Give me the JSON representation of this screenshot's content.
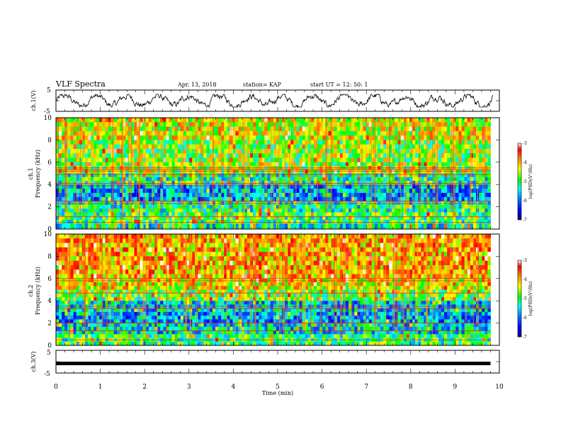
{
  "header": {
    "title": "VLF Spectra",
    "date": "Apr. 13, 2018",
    "station": "station= KAP",
    "start": "start  UT  =   12: 50: 1"
  },
  "colorbar": {
    "label": "log(PSD)(V²/Hz)",
    "ticks": [
      "-3",
      "-4",
      "-5",
      "-6",
      "-7"
    ],
    "colors": [
      "#000080",
      "#0000ff",
      "#0080ff",
      "#00ffff",
      "#00ff00",
      "#ffff00",
      "#ff8000",
      "#ff0000",
      "#ffffff"
    ]
  },
  "chart_data": [
    {
      "type": "line",
      "name": "waveform-ch1",
      "ylabel": "ch.1(V)",
      "ylim": [
        -5,
        5
      ],
      "yticks": [
        "5",
        "-5"
      ],
      "xlim": [
        0,
        10
      ],
      "series": [
        {
          "description": "noisy waveform centered near 0 V",
          "y_range": [
            -3,
            3
          ]
        }
      ]
    },
    {
      "type": "heatmap",
      "name": "spectrogram-ch1",
      "channel": "ch.1",
      "ylabel": "Frequency (kHz)",
      "ylim": [
        0,
        10
      ],
      "yticks": [
        "10",
        "8",
        "6",
        "4",
        "2",
        "0"
      ],
      "xlim": [
        0,
        9.8
      ],
      "z_range": [
        -7,
        -3
      ],
      "bands": [
        {
          "f": [
            8.0,
            10.0
          ],
          "z": -4.4
        },
        {
          "f": [
            6.0,
            8.0
          ],
          "z": -4.7
        },
        {
          "f": [
            5.0,
            6.0
          ],
          "z": -4.6
        },
        {
          "f": [
            4.0,
            5.0
          ],
          "z": -5.2
        },
        {
          "f": [
            2.5,
            4.0
          ],
          "z": -5.8
        },
        {
          "f": [
            1.5,
            2.5
          ],
          "z": -5.2
        },
        {
          "f": [
            0.5,
            1.5
          ],
          "z": -5.0
        },
        {
          "f": [
            0.0,
            0.5
          ],
          "z": -5.3
        }
      ],
      "lines_khz": [
        5.5,
        5.35,
        5.2,
        4.9,
        4.1,
        3.9,
        2.5,
        2.3,
        1.1,
        0.6
      ]
    },
    {
      "type": "heatmap",
      "name": "spectrogram-ch2",
      "channel": "ch.2",
      "ylabel": "Frequency (kHz)",
      "ylim": [
        0,
        10
      ],
      "yticks": [
        "10",
        "8",
        "6",
        "4",
        "2",
        "0"
      ],
      "xlim": [
        0,
        9.8
      ],
      "z_range": [
        -7,
        -3
      ],
      "bands": [
        {
          "f": [
            6.0,
            10.0
          ],
          "z": -4.0
        },
        {
          "f": [
            5.0,
            6.0
          ],
          "z": -4.3
        },
        {
          "f": [
            4.0,
            5.0
          ],
          "z": -4.8
        },
        {
          "f": [
            3.0,
            4.0
          ],
          "z": -5.6
        },
        {
          "f": [
            2.0,
            3.0
          ],
          "z": -5.8
        },
        {
          "f": [
            1.0,
            2.0
          ],
          "z": -5.5
        },
        {
          "f": [
            0.0,
            1.0
          ],
          "z": -5.0
        }
      ],
      "lines_khz": [
        6.0,
        5.8,
        4.7,
        3.5,
        3.3,
        2.0,
        1.3,
        0.5
      ]
    },
    {
      "type": "line",
      "name": "waveform-ch3",
      "ylabel": "ch.3(V)",
      "ylim": [
        -5,
        5
      ],
      "yticks": [
        "5",
        "-5"
      ],
      "xlim": [
        0,
        10
      ],
      "series": [
        {
          "description": "flat constant level",
          "y": -0.8
        }
      ]
    }
  ],
  "x_axis": {
    "label": "Time (min)",
    "ticks": [
      "0",
      "1",
      "2",
      "3",
      "4",
      "5",
      "6",
      "7",
      "8",
      "9",
      "10"
    ]
  }
}
